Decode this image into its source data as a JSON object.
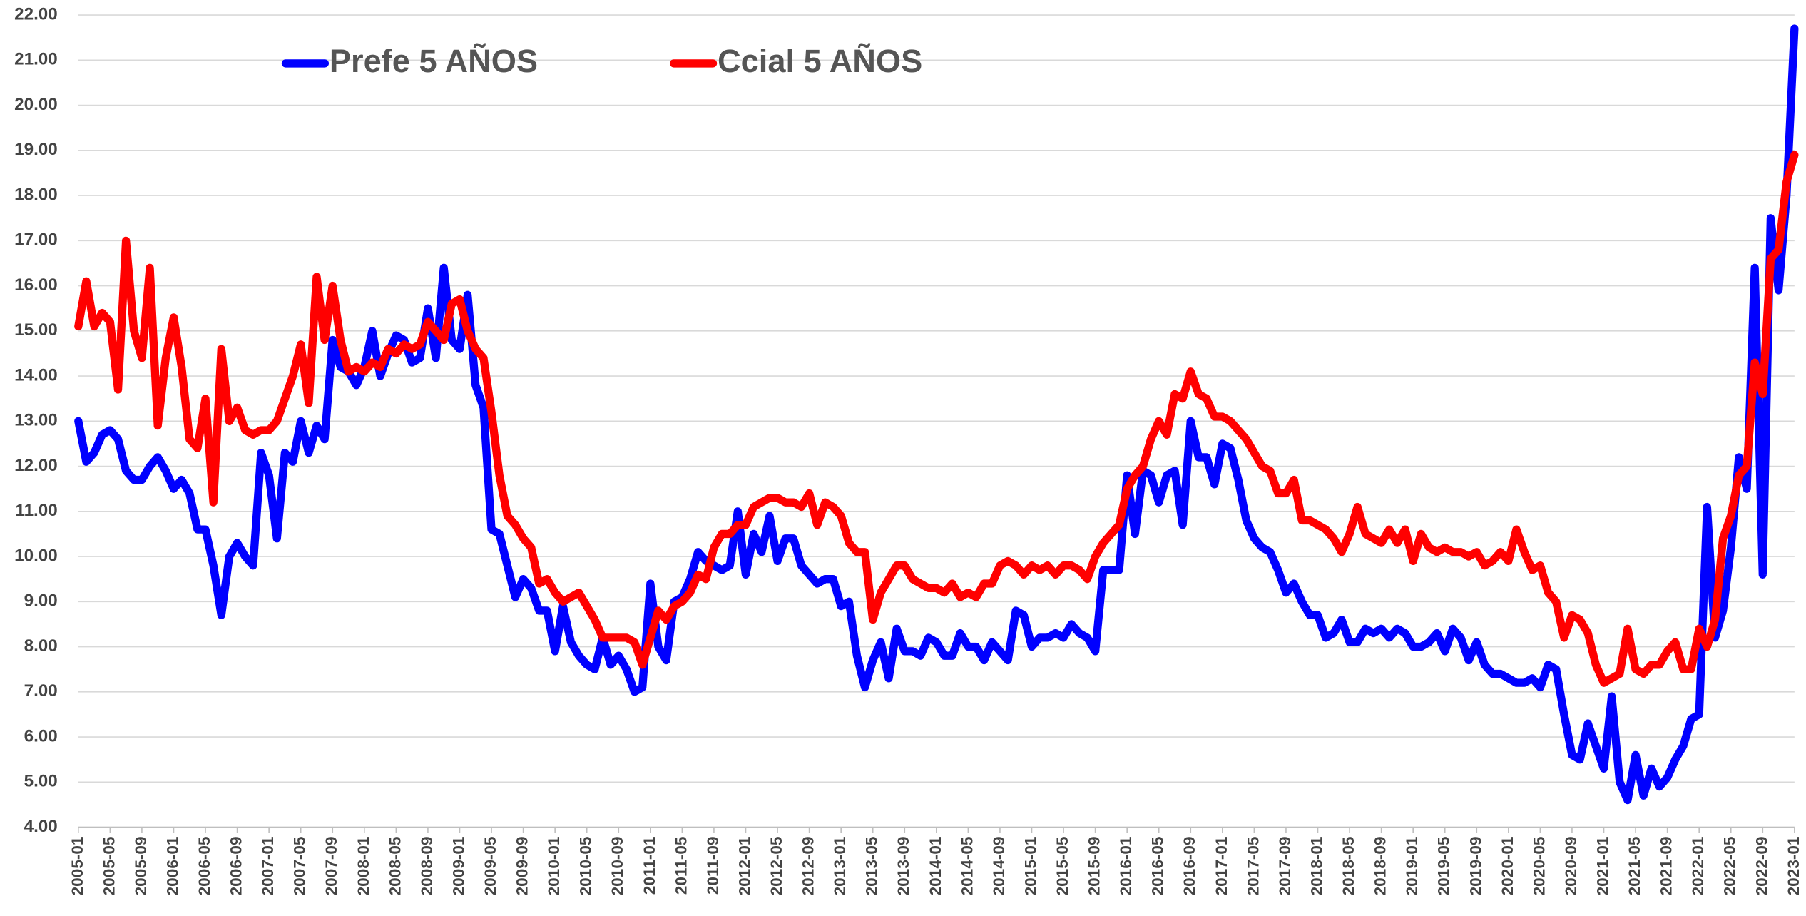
{
  "chart_data": {
    "type": "line",
    "categories": [
      "2005-01",
      null,
      null,
      null,
      "2005-05",
      null,
      null,
      null,
      "2005-09",
      null,
      null,
      null,
      "2006-01",
      null,
      null,
      null,
      "2006-05",
      null,
      null,
      null,
      "2006-09",
      null,
      null,
      null,
      "2007-01",
      null,
      null,
      null,
      "2007-05",
      null,
      null,
      null,
      "2007-09",
      null,
      null,
      null,
      "2008-01",
      null,
      null,
      null,
      "2008-05",
      null,
      null,
      null,
      "2008-09",
      null,
      null,
      null,
      "2009-01",
      null,
      null,
      null,
      "2009-05",
      null,
      null,
      null,
      "2009-09",
      null,
      null,
      null,
      "2010-01",
      null,
      null,
      null,
      "2010-05",
      null,
      null,
      null,
      "2010-09",
      null,
      null,
      null,
      "2011-01",
      null,
      null,
      null,
      "2011-05",
      null,
      null,
      null,
      "2011-09",
      null,
      null,
      null,
      "2012-01",
      null,
      null,
      null,
      "2012-05",
      null,
      null,
      null,
      "2012-09",
      null,
      null,
      null,
      "2013-01",
      null,
      null,
      null,
      "2013-05",
      null,
      null,
      null,
      "2013-09",
      null,
      null,
      null,
      "2014-01",
      null,
      null,
      null,
      "2014-05",
      null,
      null,
      null,
      "2014-09",
      null,
      null,
      null,
      "2015-01",
      null,
      null,
      null,
      "2015-05",
      null,
      null,
      null,
      "2015-09",
      null,
      null,
      null,
      "2016-01",
      null,
      null,
      null,
      "2016-05",
      null,
      null,
      null,
      "2016-09",
      null,
      null,
      null,
      "2017-01",
      null,
      null,
      null,
      "2017-05",
      null,
      null,
      null,
      "2017-09",
      null,
      null,
      null,
      "2018-01",
      null,
      null,
      null,
      "2018-05",
      null,
      null,
      null,
      "2018-09",
      null,
      null,
      null,
      "2019-01",
      null,
      null,
      null,
      "2019-05",
      null,
      null,
      null,
      "2019-09",
      null,
      null,
      null,
      "2020-01",
      null,
      null,
      null,
      "2020-05",
      null,
      null,
      null,
      "2020-09",
      null,
      null,
      null,
      "2021-01",
      null,
      null,
      null,
      "2021-05",
      null,
      null,
      null,
      "2021-09",
      null,
      null,
      null,
      "2022-01",
      null,
      null,
      null,
      "2022-05",
      null,
      null,
      null,
      "2022-09",
      null,
      null,
      null,
      "2023-01"
    ],
    "series": [
      {
        "name": "Prefe 5 AÑOS",
        "color": "#0000ff",
        "values": [
          13.0,
          12.1,
          12.3,
          12.7,
          12.8,
          12.6,
          11.9,
          11.7,
          11.7,
          12.0,
          12.2,
          11.9,
          11.5,
          11.7,
          11.4,
          10.6,
          10.6,
          9.8,
          8.7,
          10.0,
          10.3,
          10.0,
          9.8,
          12.3,
          11.8,
          10.4,
          12.3,
          12.1,
          13.0,
          12.3,
          12.9,
          12.6,
          14.8,
          14.2,
          14.1,
          13.8,
          14.2,
          15.0,
          14.0,
          14.5,
          14.9,
          14.8,
          14.3,
          14.4,
          15.5,
          14.4,
          16.4,
          14.8,
          14.6,
          15.8,
          13.8,
          13.3,
          10.6,
          10.5,
          9.8,
          9.1,
          9.5,
          9.3,
          8.8,
          8.8,
          7.9,
          8.9,
          8.1,
          7.8,
          7.6,
          7.5,
          8.2,
          7.6,
          7.8,
          7.5,
          7.0,
          7.1,
          9.4,
          8.0,
          7.7,
          9.0,
          9.1,
          9.5,
          10.1,
          9.9,
          9.8,
          9.7,
          9.8,
          11.0,
          9.6,
          10.5,
          10.1,
          10.9,
          9.9,
          10.4,
          10.4,
          9.8,
          9.6,
          9.4,
          9.5,
          9.5,
          8.9,
          9.0,
          7.8,
          7.1,
          7.7,
          8.1,
          7.3,
          8.4,
          7.9,
          7.9,
          7.8,
          8.2,
          8.1,
          7.8,
          7.8,
          8.3,
          8.0,
          8.0,
          7.7,
          8.1,
          7.9,
          7.7,
          8.8,
          8.7,
          8.0,
          8.2,
          8.2,
          8.3,
          8.2,
          8.5,
          8.3,
          8.2,
          7.9,
          9.7,
          9.7,
          9.7,
          11.8,
          10.5,
          11.9,
          11.8,
          11.2,
          11.8,
          11.9,
          10.7,
          13.0,
          12.2,
          12.2,
          11.6,
          12.5,
          12.4,
          11.7,
          10.8,
          10.4,
          10.2,
          10.1,
          9.7,
          9.2,
          9.4,
          9.0,
          8.7,
          8.7,
          8.2,
          8.3,
          8.6,
          8.1,
          8.1,
          8.4,
          8.3,
          8.4,
          8.2,
          8.4,
          8.3,
          8.0,
          8.0,
          8.1,
          8.3,
          7.9,
          8.4,
          8.2,
          7.7,
          8.1,
          7.6,
          7.4,
          7.4,
          7.3,
          7.2,
          7.2,
          7.3,
          7.1,
          7.6,
          7.5,
          6.5,
          5.6,
          5.5,
          6.3,
          5.8,
          5.3,
          6.9,
          5.0,
          4.6,
          5.6,
          4.7,
          5.3,
          4.9,
          5.1,
          5.5,
          5.8,
          6.4,
          6.5,
          11.1,
          8.2,
          8.8,
          10.2,
          12.2,
          11.5,
          16.4,
          9.6,
          17.5,
          15.9,
          18.0,
          21.7
        ]
      },
      {
        "name": "Ccial 5 AÑOS",
        "color": "#ff0000",
        "values": [
          15.1,
          16.1,
          15.1,
          15.4,
          15.2,
          13.7,
          17.0,
          15.0,
          14.4,
          16.4,
          12.9,
          14.4,
          15.3,
          14.2,
          12.6,
          12.4,
          13.5,
          11.2,
          14.6,
          13.0,
          13.3,
          12.8,
          12.7,
          12.8,
          12.8,
          13.0,
          13.5,
          14.0,
          14.7,
          13.4,
          16.2,
          14.8,
          16.0,
          14.8,
          14.1,
          14.2,
          14.1,
          14.3,
          14.2,
          14.6,
          14.5,
          14.7,
          14.6,
          14.7,
          15.2,
          15.0,
          14.8,
          15.6,
          15.7,
          15.0,
          14.6,
          14.4,
          13.2,
          11.8,
          10.9,
          10.7,
          10.4,
          10.2,
          9.4,
          9.5,
          9.2,
          9.0,
          9.1,
          9.2,
          8.9,
          8.6,
          8.2,
          8.2,
          8.2,
          8.2,
          8.1,
          7.6,
          8.2,
          8.8,
          8.6,
          8.9,
          9.0,
          9.2,
          9.6,
          9.5,
          10.2,
          10.5,
          10.5,
          10.7,
          10.7,
          11.1,
          11.2,
          11.3,
          11.3,
          11.2,
          11.2,
          11.1,
          11.4,
          10.7,
          11.2,
          11.1,
          10.9,
          10.3,
          10.1,
          10.1,
          8.6,
          9.2,
          9.5,
          9.8,
          9.8,
          9.5,
          9.4,
          9.3,
          9.3,
          9.2,
          9.4,
          9.1,
          9.2,
          9.1,
          9.4,
          9.4,
          9.8,
          9.9,
          9.8,
          9.6,
          9.8,
          9.7,
          9.8,
          9.6,
          9.8,
          9.8,
          9.7,
          9.5,
          10.0,
          10.3,
          10.5,
          10.7,
          11.5,
          11.8,
          12.0,
          12.6,
          13.0,
          12.7,
          13.6,
          13.5,
          14.1,
          13.6,
          13.5,
          13.1,
          13.1,
          13.0,
          12.8,
          12.6,
          12.3,
          12.0,
          11.9,
          11.4,
          11.4,
          11.7,
          10.8,
          10.8,
          10.7,
          10.6,
          10.4,
          10.1,
          10.5,
          11.1,
          10.5,
          10.4,
          10.3,
          10.6,
          10.3,
          10.6,
          9.9,
          10.5,
          10.2,
          10.1,
          10.2,
          10.1,
          10.1,
          10.0,
          10.1,
          9.8,
          9.9,
          10.1,
          9.9,
          10.6,
          10.1,
          9.7,
          9.8,
          9.2,
          9.0,
          8.2,
          8.7,
          8.6,
          8.3,
          7.6,
          7.2,
          7.3,
          7.4,
          8.4,
          7.5,
          7.4,
          7.6,
          7.6,
          7.9,
          8.1,
          7.5,
          7.5,
          8.4,
          8.0,
          8.6,
          10.4,
          10.9,
          11.8,
          12.0,
          14.3,
          13.6,
          16.6,
          16.8,
          18.3,
          18.9
        ]
      }
    ],
    "ylim": [
      4,
      22
    ],
    "yticks": [
      {
        "value": 4,
        "label": "4.00"
      },
      {
        "value": 5,
        "label": "5.00"
      },
      {
        "value": 6,
        "label": "6.00"
      },
      {
        "value": 7,
        "label": "7.00"
      },
      {
        "value": 8,
        "label": "8.00"
      },
      {
        "value": 9,
        "label": "9.00"
      },
      {
        "value": 10,
        "label": "10.00"
      },
      {
        "value": 11,
        "label": "11.00"
      },
      {
        "value": 12,
        "label": "12.00"
      },
      {
        "value": 13,
        "label": "13.00"
      },
      {
        "value": 14,
        "label": "14.00"
      },
      {
        "value": 15,
        "label": "15.00"
      },
      {
        "value": 16,
        "label": "16.00"
      },
      {
        "value": 17,
        "label": "17.00"
      },
      {
        "value": 18,
        "label": "18.00"
      },
      {
        "value": 19,
        "label": "19.00"
      },
      {
        "value": 20,
        "label": "20.00"
      },
      {
        "value": 21,
        "label": "21.00"
      },
      {
        "value": 22,
        "label": "22.00"
      }
    ],
    "grid": true,
    "legend": "top"
  }
}
